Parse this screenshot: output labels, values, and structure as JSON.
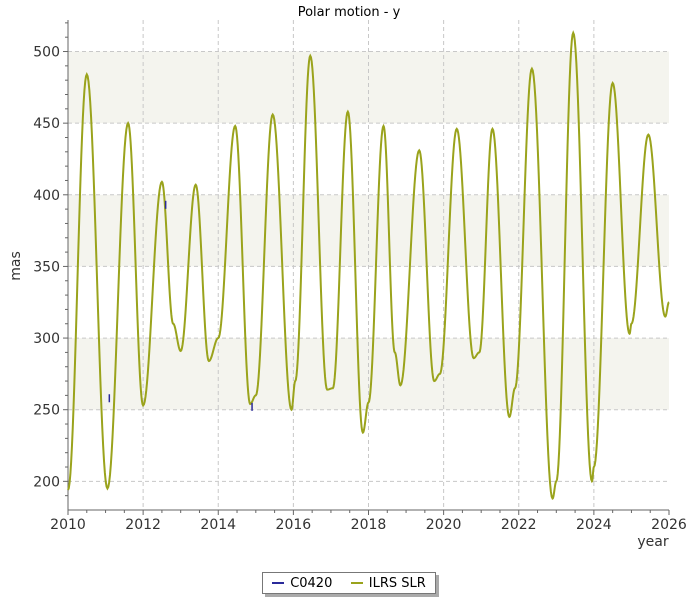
{
  "chart_data": {
    "type": "line",
    "title": "Polar motion - y",
    "xlabel": "year",
    "ylabel": "mas",
    "xlim": [
      2010,
      2026
    ],
    "ylim": [
      180,
      522
    ],
    "xticks": [
      2010,
      2012,
      2014,
      2016,
      2018,
      2020,
      2022,
      2024,
      2026
    ],
    "yticks": [
      200,
      250,
      300,
      350,
      400,
      450,
      500
    ],
    "bands": [
      [
        250,
        300
      ],
      [
        350,
        400
      ],
      [
        450,
        500
      ]
    ],
    "grid": true,
    "legend_position": "bottom",
    "series": [
      {
        "name": "C0420",
        "color": "#2a2a9a",
        "x": [
          2011.1,
          2012.6,
          2014.9
        ],
        "y": [
          258,
          393,
          252
        ]
      },
      {
        "name": "ILRS SLR",
        "color": "#9aa31c",
        "x": [
          2010.0,
          2010.5,
          2011.05,
          2011.6,
          2012.0,
          2012.5,
          2012.8,
          2013.0,
          2013.4,
          2013.75,
          2014.0,
          2014.45,
          2014.85,
          2015.0,
          2015.45,
          2015.95,
          2016.05,
          2016.45,
          2016.9,
          2017.05,
          2017.45,
          2017.85,
          2018.0,
          2018.4,
          2018.7,
          2018.85,
          2019.35,
          2019.75,
          2019.9,
          2020.35,
          2020.8,
          2020.95,
          2021.3,
          2021.75,
          2021.9,
          2022.35,
          2022.9,
          2023.0,
          2023.45,
          2023.95,
          2024.0,
          2024.5,
          2024.95,
          2025.0,
          2025.45,
          2025.9,
          2026.0
        ],
        "y": [
          194,
          484,
          195,
          450,
          253,
          409,
          310,
          291,
          407,
          284,
          300,
          448,
          254,
          260,
          456,
          250,
          270,
          497,
          264,
          265,
          458,
          234,
          255,
          448,
          290,
          267,
          431,
          270,
          275,
          446,
          286,
          290,
          446,
          245,
          265,
          488,
          188,
          200,
          513,
          200,
          210,
          478,
          303,
          310,
          442,
          315,
          325
        ]
      }
    ]
  },
  "legend": {
    "items": [
      {
        "label": "C0420",
        "color": "#2a2a9a"
      },
      {
        "label": "ILRS SLR",
        "color": "#9aa31c"
      }
    ]
  }
}
